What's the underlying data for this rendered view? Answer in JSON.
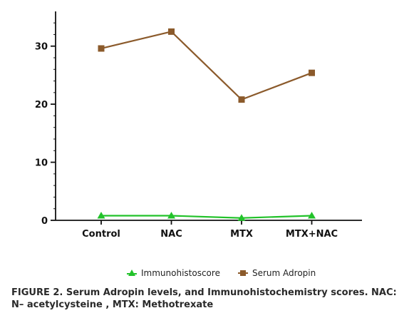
{
  "chart_data": {
    "type": "line",
    "categories": [
      "Control",
      "NAC",
      "MTX",
      "MTX+NAC"
    ],
    "series": [
      {
        "name": "Immunohistoscore",
        "values": [
          0.8,
          0.8,
          0.4,
          0.8
        ],
        "color": "#22c22a",
        "marker": "triangle"
      },
      {
        "name": "Serum Adropin",
        "values": [
          29.6,
          32.5,
          20.8,
          25.4
        ],
        "color": "#8b5a2b",
        "marker": "square"
      }
    ],
    "yticks": [
      0,
      10,
      20,
      30
    ],
    "ylim": [
      0,
      35
    ],
    "legend_position": "bottom",
    "grid": false
  },
  "caption": "FIGURE 2. Serum Adropin levels, and Immunohistochemistry scores. NAC: N– acetylcysteine , MTX: Methotrexate"
}
